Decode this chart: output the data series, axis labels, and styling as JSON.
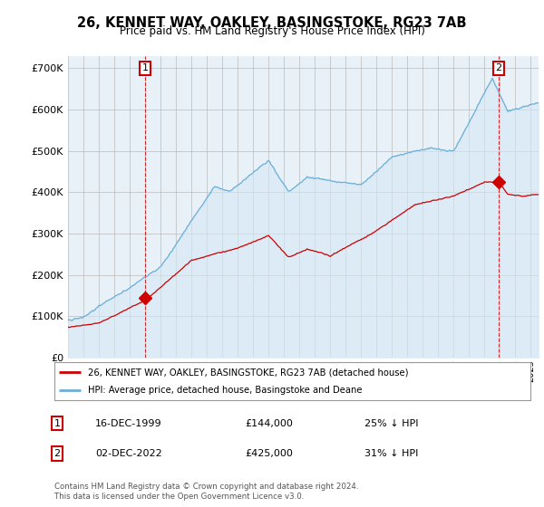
{
  "title": "26, KENNET WAY, OAKLEY, BASINGSTOKE, RG23 7AB",
  "subtitle": "Price paid vs. HM Land Registry's House Price Index (HPI)",
  "ytick_values": [
    0,
    100000,
    200000,
    300000,
    400000,
    500000,
    600000,
    700000
  ],
  "ylim": [
    0,
    730000
  ],
  "xlim_start": 1995.0,
  "xlim_end": 2025.5,
  "hpi_color": "#6baed6",
  "hpi_fill_color": "#d4e8f5",
  "price_color": "#cc0000",
  "transaction1_date": 2000.0,
  "transaction1_price": 144000,
  "transaction2_date": 2022.92,
  "transaction2_price": 425000,
  "legend_label1": "26, KENNET WAY, OAKLEY, BASINGSTOKE, RG23 7AB (detached house)",
  "legend_label2": "HPI: Average price, detached house, Basingstoke and Deane",
  "note1_date": "16-DEC-1999",
  "note1_price": "£144,000",
  "note1_pct": "25% ↓ HPI",
  "note2_date": "02-DEC-2022",
  "note2_price": "£425,000",
  "note2_pct": "31% ↓ HPI",
  "footer": "Contains HM Land Registry data © Crown copyright and database right 2024.\nThis data is licensed under the Open Government Licence v3.0.",
  "background_color": "#ffffff",
  "chart_bg_color": "#e8f0f8",
  "grid_color": "#bbbbbb"
}
